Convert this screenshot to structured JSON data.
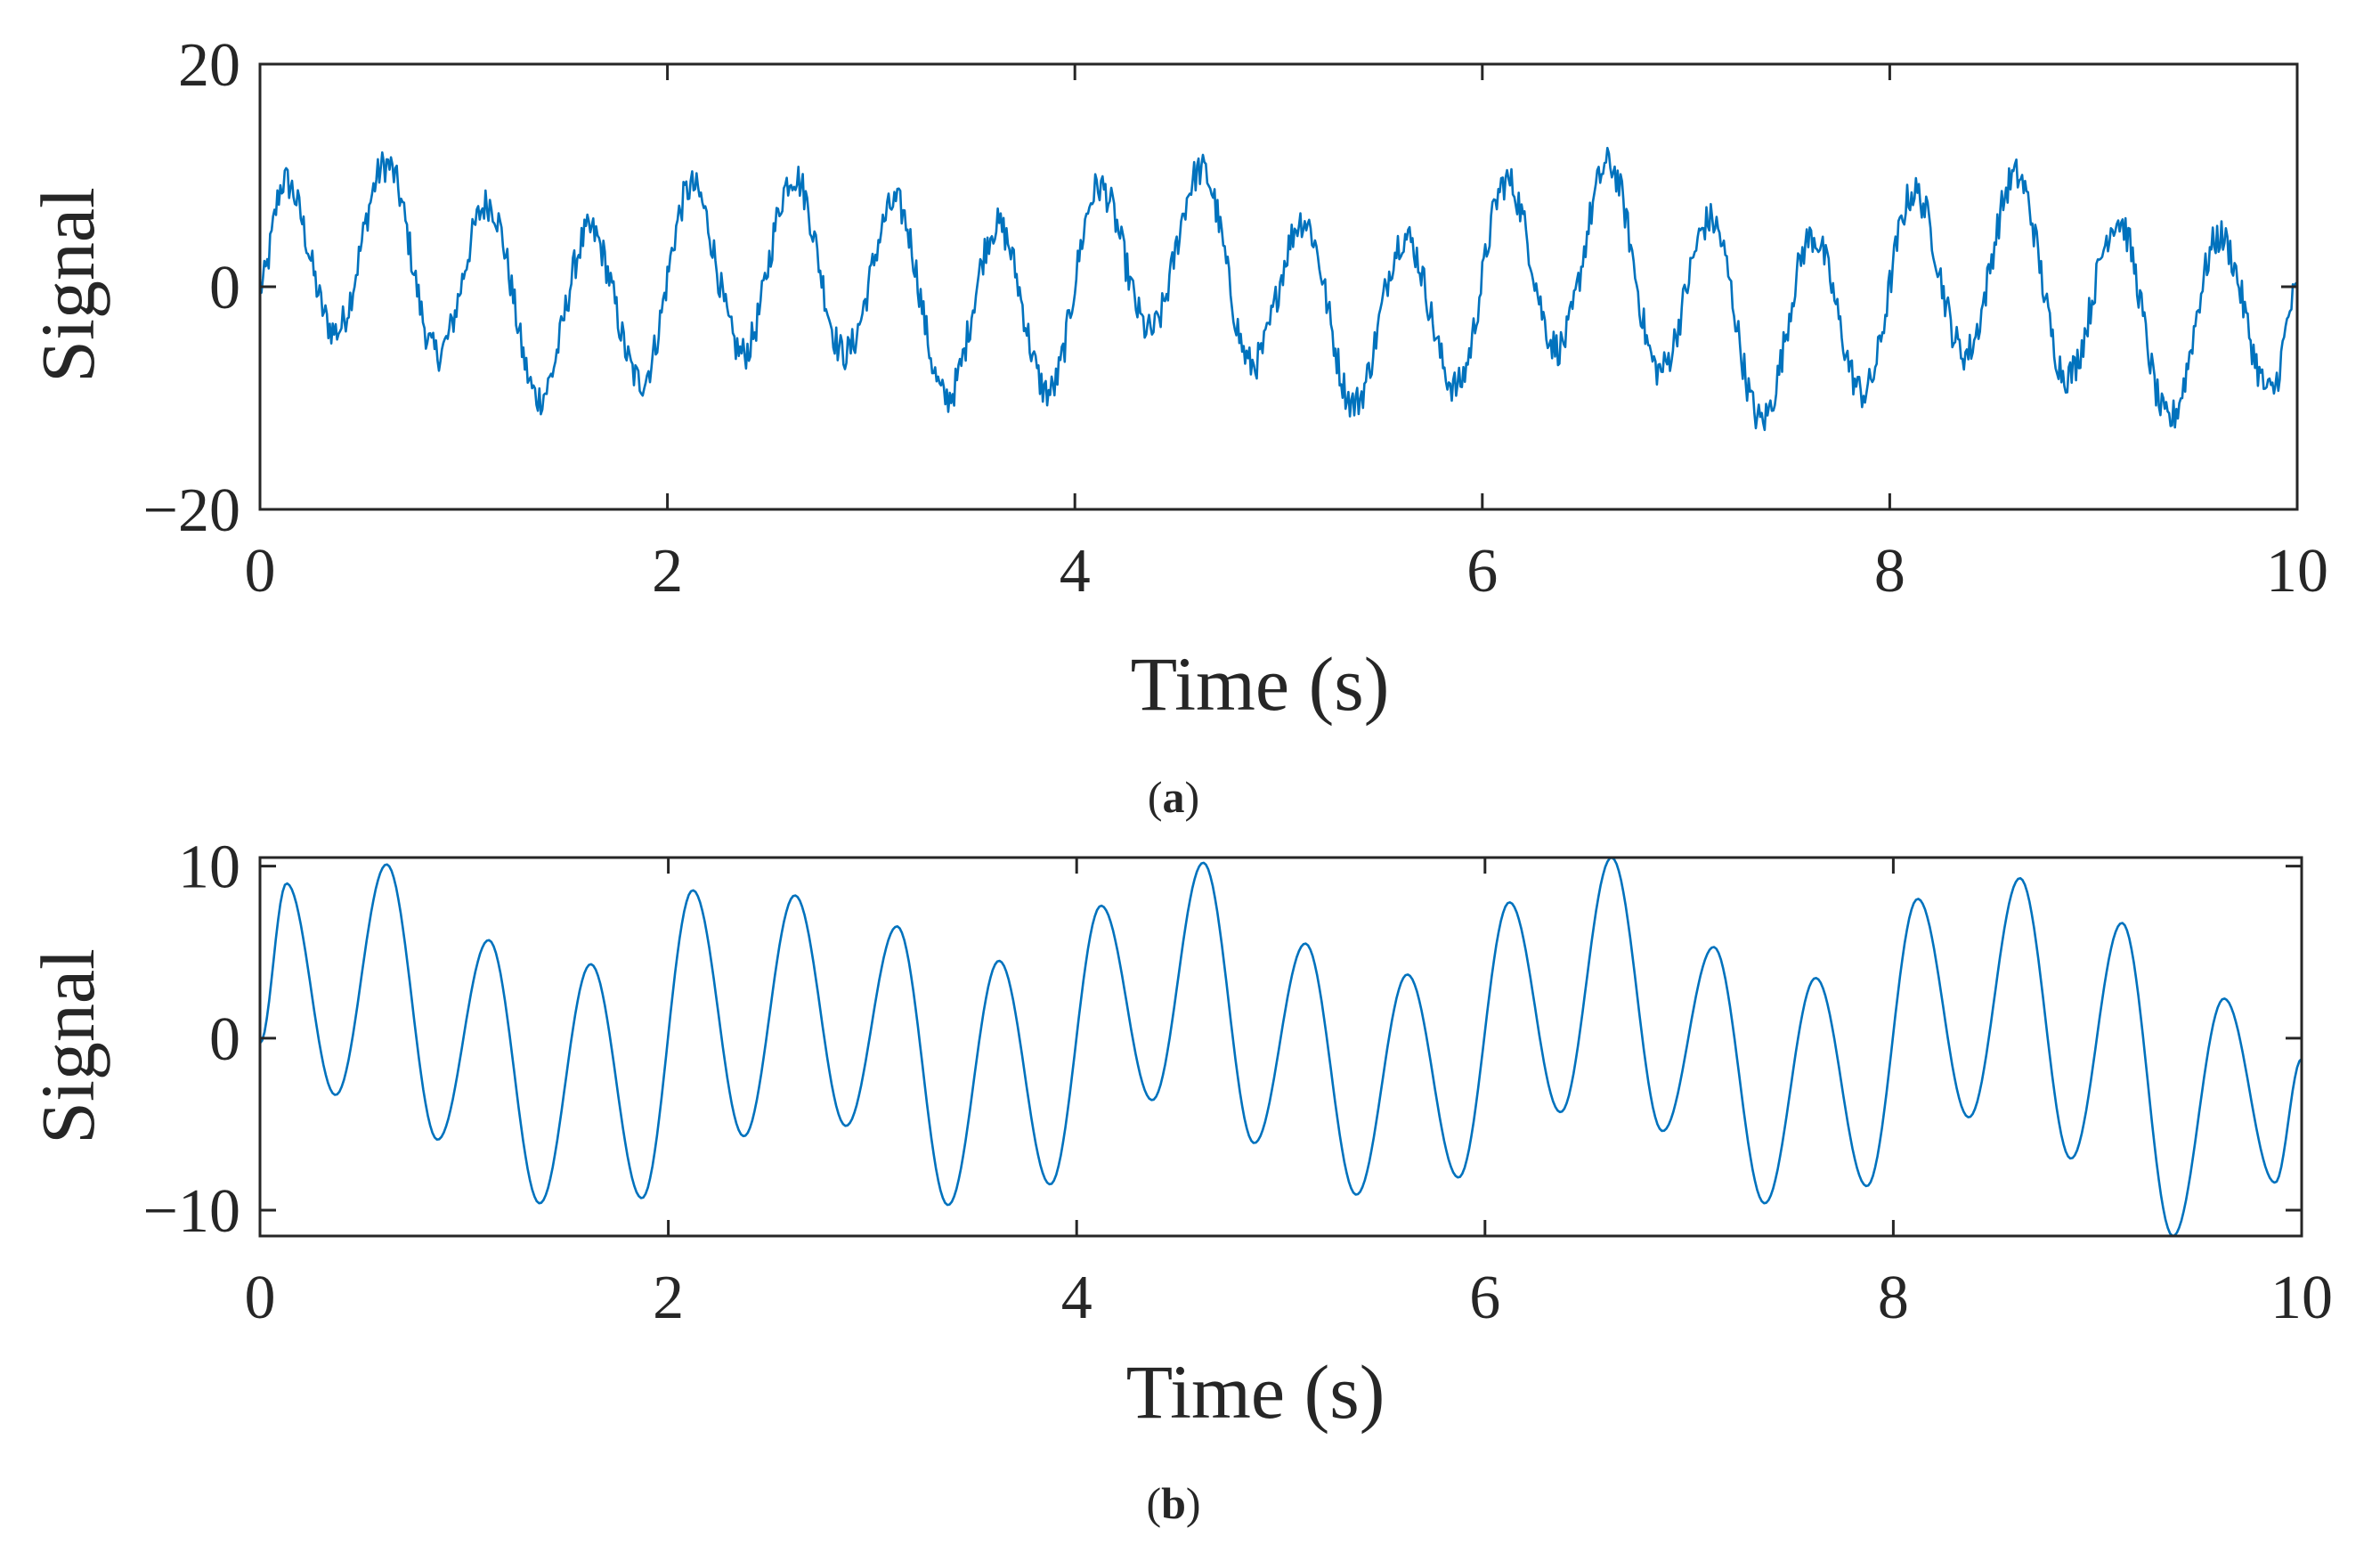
{
  "colors": {
    "series": "#0072BD",
    "axes": "#262626",
    "background": "#ffffff"
  },
  "chart_data": [
    {
      "type": "line",
      "panel": "a",
      "caption": {
        "open": "(",
        "letter": "a",
        "close": ")"
      },
      "title": "",
      "xlabel": "Time (s)",
      "ylabel": "Signal",
      "xlim": [
        0,
        10
      ],
      "ylim": [
        -20,
        20
      ],
      "xticks": [
        0,
        2,
        4,
        6,
        8,
        10
      ],
      "yticks": [
        -20,
        0,
        20
      ],
      "xtick_labels": [
        "0",
        "2",
        "4",
        "6",
        "8",
        "10"
      ],
      "ytick_labels": [
        "−20",
        "0",
        "20"
      ],
      "grid": false,
      "legend": "none",
      "series": [
        {
          "description_points": "approximate peaks/troughs read from the noisy trace",
          "x": [
            0,
            0.12,
            0.37,
            0.62,
            0.87,
            1.12,
            1.37,
            1.62,
            1.87,
            2.12,
            2.37,
            2.62,
            2.87,
            3.12,
            3.37,
            3.62,
            3.87,
            4.12,
            4.37,
            4.62,
            4.87,
            5.12,
            5.37,
            5.62,
            5.87,
            6.12,
            6.37,
            6.62,
            6.87,
            7.12,
            7.37,
            7.62,
            7.87,
            8.12,
            8.37,
            8.62,
            8.87,
            9.12,
            9.37,
            9.62,
            9.87,
            10
          ],
          "values": [
            0,
            9.5,
            -4,
            11,
            -6,
            7.5,
            -10,
            5,
            -8.5,
            9,
            -6,
            10,
            -6,
            7.5,
            -10,
            5.5,
            -9.5,
            9,
            -4,
            10.5,
            -7,
            6,
            -10.5,
            4.5,
            -9,
            9.5,
            -5.5,
            11,
            -7.5,
            6,
            -12,
            4.5,
            -9.5,
            8.5,
            -6,
            10,
            -8,
            6,
            -12,
            4.5,
            -9.5,
            -0.5
          ]
        }
      ]
    },
    {
      "type": "line",
      "panel": "b",
      "caption": {
        "open": "(",
        "letter": "b",
        "close": ")"
      },
      "title": "",
      "xlabel": "Time (s)",
      "ylabel": "Signal",
      "xlim": [
        0,
        10
      ],
      "ylim": [
        -11.5,
        10.5
      ],
      "xticks": [
        0,
        2,
        4,
        6,
        8,
        10
      ],
      "yticks": [
        -10,
        0,
        10
      ],
      "xtick_labels": [
        "0",
        "2",
        "4",
        "6",
        "8",
        "10"
      ],
      "ytick_labels": [
        "−10",
        "0",
        "10"
      ],
      "grid": false,
      "legend": "none",
      "series": [
        {
          "x": [
            0,
            0.13,
            0.37,
            0.62,
            0.87,
            1.12,
            1.37,
            1.62,
            1.87,
            2.12,
            2.37,
            2.62,
            2.87,
            3.12,
            3.37,
            3.62,
            3.87,
            4.12,
            4.37,
            4.62,
            4.87,
            5.12,
            5.37,
            5.62,
            5.87,
            6.12,
            6.37,
            6.62,
            6.87,
            7.12,
            7.37,
            7.62,
            7.87,
            8.12,
            8.37,
            8.62,
            8.87,
            9.12,
            9.37,
            9.62,
            9.87,
            10
          ],
          "values": [
            -0.3,
            9,
            -3.3,
            10.1,
            -5.9,
            5.7,
            -9.6,
            4.3,
            -9.3,
            8.6,
            -5.7,
            8.3,
            -5.1,
            6.5,
            -9.7,
            4.5,
            -8.5,
            7.7,
            -3.6,
            10.2,
            -6.1,
            5.5,
            -9.1,
            3.7,
            -8.1,
            7.9,
            -4.3,
            10.5,
            -5.4,
            5.3,
            -9.6,
            3.5,
            -8.6,
            8.1,
            -4.6,
            9.3,
            -7,
            6.7,
            -11.5,
            2.3,
            -8.4,
            -1.2
          ]
        }
      ]
    }
  ]
}
